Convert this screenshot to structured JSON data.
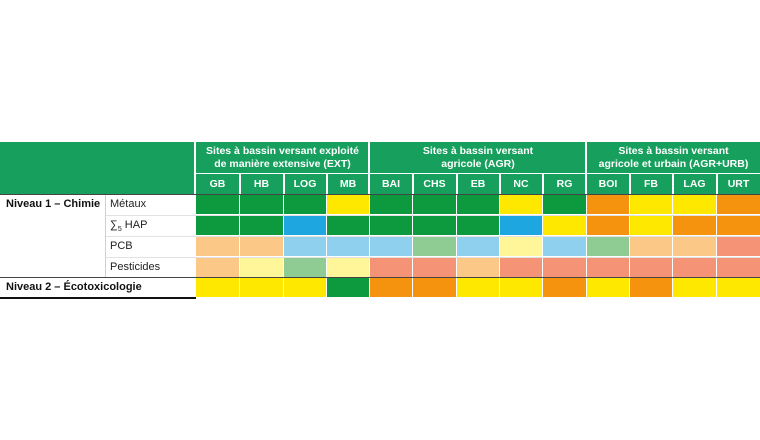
{
  "groups": [
    {
      "label_line1": "Sites à bassin versant exploité",
      "label_line2": "de manière extensive (EXT)"
    },
    {
      "label_line1": "Sites à bassin versant",
      "label_line2": "agricole (AGR)"
    },
    {
      "label_line1": "Sites à bassin versant",
      "label_line2": "agricole et urbain (AGR+URB)"
    }
  ],
  "columns": [
    "GB",
    "HB",
    "LOG",
    "MB",
    "BAI",
    "CHS",
    "EB",
    "NC",
    "RG",
    "BOI",
    "FB",
    "LAG",
    "URT"
  ],
  "levels": [
    {
      "label": "Niveau 1 – Chimie"
    },
    {
      "label": "Niveau 2 – Écotoxicologie"
    }
  ],
  "sublabels": {
    "metaux": "Métaux",
    "hap_symbol": "∑",
    "hap_sub": "5",
    "hap_text": " HAP",
    "pcb": "PCB",
    "pesticides": "Pesticides"
  },
  "colors": {
    "header": "#17a05d",
    "dark_green": "#0d9a3e",
    "yellow": "#ffe800",
    "orange": "#f5930e",
    "blue": "#1ea6e0",
    "light_blue": "#8fd0ef",
    "light_green": "#8fcc93",
    "light_yellow": "#fff699",
    "light_orange": "#fcc888",
    "salmon": "#f59376"
  },
  "grid": {
    "metaux": [
      "dark_green",
      "dark_green",
      "dark_green",
      "yellow",
      "dark_green",
      "dark_green",
      "dark_green",
      "yellow",
      "dark_green",
      "orange",
      "yellow",
      "yellow",
      "orange"
    ],
    "hap": [
      "dark_green",
      "dark_green",
      "blue",
      "dark_green",
      "dark_green",
      "dark_green",
      "dark_green",
      "blue",
      "yellow",
      "orange",
      "yellow",
      "orange",
      "orange"
    ],
    "pcb": [
      "light_orange",
      "light_orange",
      "light_blue",
      "light_blue",
      "light_blue",
      "light_green",
      "light_blue",
      "light_yellow",
      "light_blue",
      "light_green",
      "light_orange",
      "light_orange",
      "salmon"
    ],
    "pesticides": [
      "light_orange",
      "light_yellow",
      "light_green",
      "light_yellow",
      "salmon",
      "salmon",
      "light_orange",
      "salmon",
      "salmon",
      "salmon",
      "salmon",
      "salmon",
      "salmon"
    ],
    "niveau2": [
      "yellow",
      "yellow",
      "yellow",
      "dark_green",
      "orange",
      "orange",
      "yellow",
      "yellow",
      "orange",
      "yellow",
      "orange",
      "yellow",
      "yellow"
    ]
  }
}
